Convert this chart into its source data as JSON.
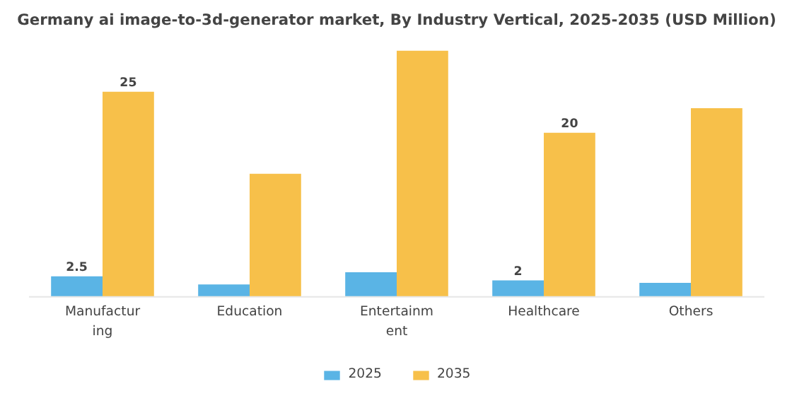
{
  "chart_data": {
    "type": "bar",
    "title": "Germany ai image-to-3d-generator market, By Industry Vertical, 2025-2035 (USD Million)",
    "categories": [
      "Manufactur\ning",
      "Education",
      "Entertainm\nent",
      "Healthcare",
      "Others"
    ],
    "series": [
      {
        "name": "2025",
        "color": "#5ab4e5",
        "values": [
          2.5,
          1.5,
          3,
          2,
          1.7
        ],
        "value_labels": [
          "2.5",
          null,
          null,
          "2",
          null
        ]
      },
      {
        "name": "2035",
        "color": "#f7c04a",
        "values": [
          25,
          15,
          30,
          20,
          23
        ],
        "value_labels": [
          "25",
          null,
          null,
          "20",
          null
        ]
      }
    ],
    "legend": "bottom"
  }
}
